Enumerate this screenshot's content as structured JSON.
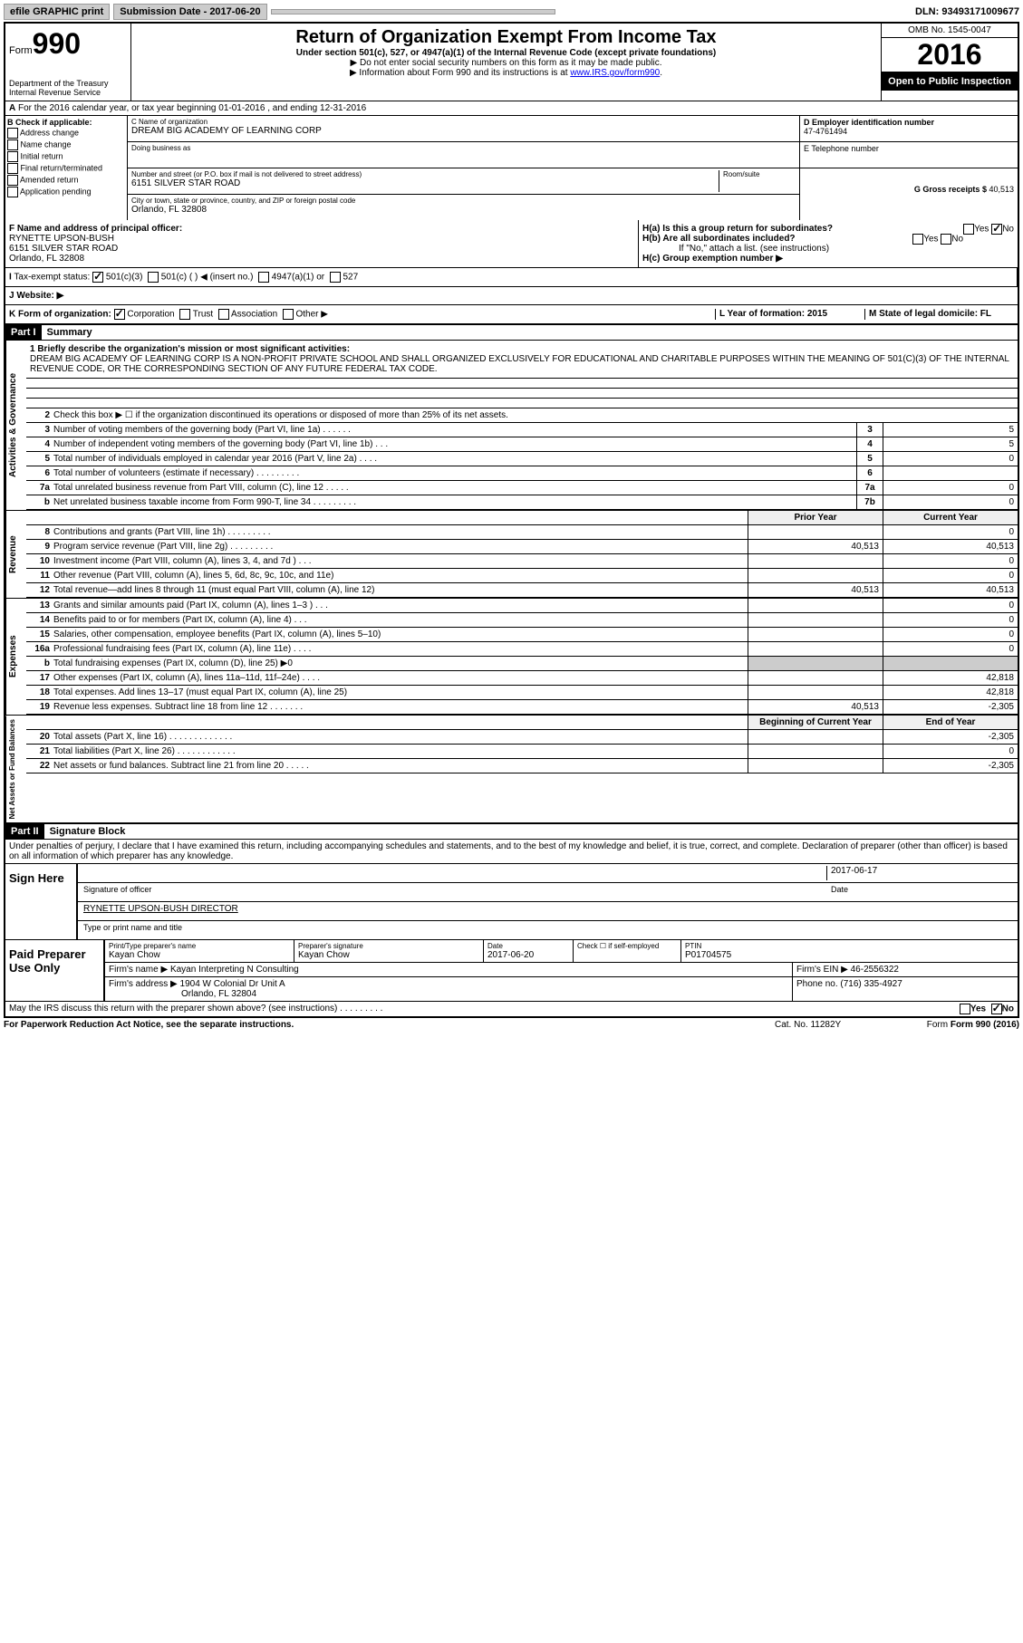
{
  "topbar": {
    "efile": "efile GRAPHIC print",
    "submission": "Submission Date - 2017-06-20",
    "dln": "DLN: 93493171009677"
  },
  "header": {
    "form_prefix": "Form",
    "form_number": "990",
    "dept": "Department of the Treasury\nInternal Revenue Service",
    "title": "Return of Organization Exempt From Income Tax",
    "subtitle": "Under section 501(c), 527, or 4947(a)(1) of the Internal Revenue Code (except private foundations)",
    "note1": "▶ Do not enter social security numbers on this form as it may be made public.",
    "note2": "▶ Information about Form 990 and its instructions is at ",
    "note2_link": "www.IRS.gov/form990",
    "omb": "OMB No. 1545-0047",
    "year": "2016",
    "open": "Open to Public Inspection"
  },
  "sectionA": "For the 2016 calendar year, or tax year beginning 01-01-2016    , and ending 12-31-2016",
  "boxB": {
    "title": "B Check if applicable:",
    "items": [
      "Address change",
      "Name change",
      "Initial return",
      "Final return/terminated",
      "Amended return",
      "Application pending"
    ]
  },
  "boxC": {
    "name_label": "C Name of organization",
    "name": "DREAM BIG ACADEMY OF LEARNING CORP",
    "dba_label": "Doing business as",
    "dba": "",
    "street_label": "Number and street (or P.O. box if mail is not delivered to street address)",
    "street": "6151 SILVER STAR ROAD",
    "room_label": "Room/suite",
    "city_label": "City or town, state or province, country, and ZIP or foreign postal code",
    "city": "Orlando, FL  32808"
  },
  "boxD": {
    "label": "D Employer identification number",
    "value": "47-4761494"
  },
  "boxE": {
    "label": "E Telephone number",
    "value": ""
  },
  "boxG": {
    "label": "G Gross receipts $",
    "value": "40,513"
  },
  "boxF": {
    "label": "F Name and address of principal officer:",
    "name": "RYNETTE UPSON-BUSH",
    "street": "6151 SILVER STAR ROAD",
    "city": "Orlando, FL  32808"
  },
  "boxH": {
    "a": "H(a)  Is this a group return for subordinates?",
    "a_yes": "Yes",
    "a_no": "No",
    "b": "H(b)  Are all subordinates included?",
    "b_yes": "Yes",
    "b_no": "No",
    "b_note": "If \"No,\" attach a list. (see instructions)",
    "c": "H(c)  Group exemption number ▶"
  },
  "taxStatus": {
    "label": "Tax-exempt status:",
    "opt1": "501(c)(3)",
    "opt2": "501(c) (   ) ◀ (insert no.)",
    "opt3": "4947(a)(1) or",
    "opt4": "527"
  },
  "website": {
    "label": "J  Website: ▶"
  },
  "kRow": {
    "k": "K Form of organization:",
    "corp": "Corporation",
    "trust": "Trust",
    "assoc": "Association",
    "other": "Other ▶",
    "l": "L Year of formation: 2015",
    "m": "M State of legal domicile: FL"
  },
  "part1": {
    "header": "Part I",
    "title": "Summary",
    "line1_label": "1  Briefly describe the organization's mission or most significant activities:",
    "line1_text": "DREAM BIG ACADEMY OF LEARNING CORP IS A NON-PROFIT PRIVATE SCHOOL AND SHALL ORGANIZED EXCLUSIVELY FOR EDUCATIONAL AND CHARITABLE PURPOSES WITHIN THE MEANING OF 501(C)(3) OF THE INTERNAL REVENUE CODE, OR THE CORRESPONDING SECTION OF ANY FUTURE FEDERAL TAX CODE.",
    "line2": "Check this box ▶ ☐  if the organization discontinued its operations or disposed of more than 25% of its net assets.",
    "vlabel_gov": "Activities & Governance",
    "vlabel_rev": "Revenue",
    "vlabel_exp": "Expenses",
    "vlabel_net": "Net Assets or Fund Balances",
    "prior_year": "Prior Year",
    "current_year": "Current Year",
    "begin_year": "Beginning of Current Year",
    "end_year": "End of Year",
    "rows_gov": [
      {
        "n": "3",
        "d": "Number of voting members of the governing body (Part VI, line 1a)   .    .    .    .    .    .",
        "box": "3",
        "v": "5"
      },
      {
        "n": "4",
        "d": "Number of independent voting members of the governing body (Part VI, line 1b)   .    .    .",
        "box": "4",
        "v": "5"
      },
      {
        "n": "5",
        "d": "Total number of individuals employed in calendar year 2016 (Part V, line 2a)   .    .    .    .",
        "box": "5",
        "v": "0"
      },
      {
        "n": "6",
        "d": "Total number of volunteers (estimate if necessary)   .    .    .    .    .    .    .    .    .",
        "box": "6",
        "v": ""
      },
      {
        "n": "7a",
        "d": "Total unrelated business revenue from Part VIII, column (C), line 12   .    .    .    .    .",
        "box": "7a",
        "v": "0"
      },
      {
        "n": "b",
        "d": "Net unrelated business taxable income from Form 990-T, line 34   .    .    .    .    .    .    .    .    .",
        "box": "7b",
        "v": "0"
      }
    ],
    "rows_rev": [
      {
        "n": "8",
        "d": "Contributions and grants (Part VIII, line 1h)   .    .    .    .    .    .    .    .    .",
        "py": "",
        "cy": "0"
      },
      {
        "n": "9",
        "d": "Program service revenue (Part VIII, line 2g)   .    .    .    .    .    .    .    .    .",
        "py": "40,513",
        "cy": "40,513"
      },
      {
        "n": "10",
        "d": "Investment income (Part VIII, column (A), lines 3, 4, and 7d )   .    .    .",
        "py": "",
        "cy": "0"
      },
      {
        "n": "11",
        "d": "Other revenue (Part VIII, column (A), lines 5, 6d, 8c, 9c, 10c, and 11e)",
        "py": "",
        "cy": "0"
      },
      {
        "n": "12",
        "d": "Total revenue—add lines 8 through 11 (must equal Part VIII, column (A), line 12)",
        "py": "40,513",
        "cy": "40,513"
      }
    ],
    "rows_exp": [
      {
        "n": "13",
        "d": "Grants and similar amounts paid (Part IX, column (A), lines 1–3 )   .    .    .",
        "py": "",
        "cy": "0"
      },
      {
        "n": "14",
        "d": "Benefits paid to or for members (Part IX, column (A), line 4)   .    .    .",
        "py": "",
        "cy": "0"
      },
      {
        "n": "15",
        "d": "Salaries, other compensation, employee benefits (Part IX, column (A), lines 5–10)",
        "py": "",
        "cy": "0"
      },
      {
        "n": "16a",
        "d": "Professional fundraising fees (Part IX, column (A), line 11e)   .    .    .    .",
        "py": "",
        "cy": "0"
      },
      {
        "n": "b",
        "d": "Total fundraising expenses (Part IX, column (D), line 25) ▶0",
        "py": "gray",
        "cy": "gray"
      },
      {
        "n": "17",
        "d": "Other expenses (Part IX, column (A), lines 11a–11d, 11f–24e)   .    .    .    .",
        "py": "",
        "cy": "42,818"
      },
      {
        "n": "18",
        "d": "Total expenses. Add lines 13–17 (must equal Part IX, column (A), line 25)",
        "py": "",
        "cy": "42,818"
      },
      {
        "n": "19",
        "d": "Revenue less expenses. Subtract line 18 from line 12   .    .    .    .    .    .    .",
        "py": "40,513",
        "cy": "-2,305"
      }
    ],
    "rows_net": [
      {
        "n": "20",
        "d": "Total assets (Part X, line 16)   .    .    .    .    .    .    .    .    .    .    .    .    .",
        "py": "",
        "cy": "-2,305"
      },
      {
        "n": "21",
        "d": "Total liabilities (Part X, line 26)   .    .    .    .    .    .    .    .    .    .    .    .",
        "py": "",
        "cy": "0"
      },
      {
        "n": "22",
        "d": "Net assets or fund balances. Subtract line 21 from line 20   .    .    .    .    .",
        "py": "",
        "cy": "-2,305"
      }
    ]
  },
  "part2": {
    "header": "Part II",
    "title": "Signature Block",
    "perjury": "Under penalties of perjury, I declare that I have examined this return, including accompanying schedules and statements, and to the best of my knowledge and belief, it is true, correct, and complete. Declaration of preparer (other than officer) is based on all information of which preparer has any knowledge.",
    "sign_here": "Sign Here",
    "sig_date": "2017-06-17",
    "sig_officer": "Signature of officer",
    "date_label": "Date",
    "officer_name": "RYNETTE UPSON-BUSH  DIRECTOR",
    "type_name": "Type or print name and title",
    "paid": "Paid Preparer Use Only",
    "prep_name_label": "Print/Type preparer's name",
    "prep_name": "Kayan Chow",
    "prep_sig_label": "Preparer's signature",
    "prep_sig": "Kayan Chow",
    "prep_date_label": "Date",
    "prep_date": "2017-06-20",
    "self_emp": "Check ☐ if self-employed",
    "ptin_label": "PTIN",
    "ptin": "P01704575",
    "firm_name_label": "Firm's name    ▶",
    "firm_name": "Kayan Interpreting N Consulting",
    "firm_ein_label": "Firm's EIN ▶",
    "firm_ein": "46-2556322",
    "firm_addr_label": "Firm's address ▶",
    "firm_addr1": "1904 W Colonial Dr Unit A",
    "firm_addr2": "Orlando, FL  32804",
    "phone_label": "Phone no.",
    "phone": "(716) 335-4927",
    "irs_discuss": "May the IRS discuss this return with the preparer shown above? (see instructions)   .    .    .    .    .    .    .    .    .",
    "yes": "Yes",
    "no": "No"
  },
  "footer": {
    "paperwork": "For Paperwork Reduction Act Notice, see the separate instructions.",
    "cat": "Cat. No. 11282Y",
    "form": "Form 990 (2016)"
  }
}
